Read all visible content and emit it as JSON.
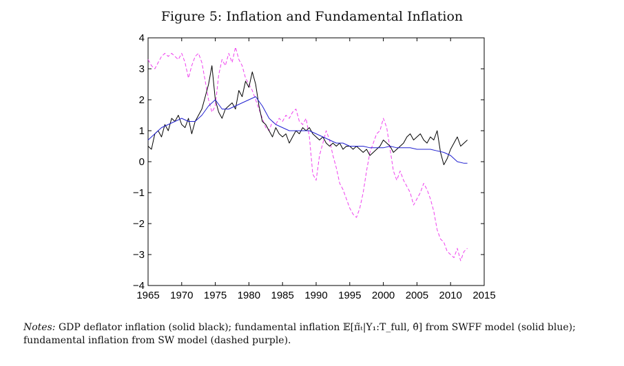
{
  "figure": {
    "title": "Figure 5: Inflation and Fundamental Inflation"
  },
  "notes": {
    "lead": "Notes:",
    "text_part1": "GDP deflator inflation (solid black); fundamental inflation",
    "math_expr": "𝔼[π̃ₜ|Y₁:T_full, θ̂]",
    "text_part2": "from SWFF model (solid blue); fundamental inflation from SW model (dashed purple)."
  },
  "chart_data": {
    "type": "line",
    "title": "",
    "xlabel": "",
    "ylabel": "",
    "xlim": [
      1965,
      2015
    ],
    "ylim": [
      -4,
      4
    ],
    "x_ticks": [
      1965,
      1970,
      1975,
      1980,
      1985,
      1990,
      1995,
      2000,
      2005,
      2010,
      2015
    ],
    "y_ticks": [
      -4,
      -3,
      -2,
      -1,
      0,
      1,
      2,
      3,
      4
    ],
    "series": [
      {
        "name": "GDP deflator inflation (solid black)",
        "color": "#000000",
        "style": "solid",
        "x": [
          1965,
          1965.5,
          1966,
          1966.5,
          1967,
          1967.5,
          1968,
          1968.5,
          1969,
          1969.5,
          1970,
          1970.5,
          1971,
          1971.5,
          1972,
          1972.5,
          1973,
          1973.5,
          1974,
          1974.5,
          1975,
          1975.5,
          1976,
          1976.5,
          1977,
          1977.5,
          1978,
          1978.5,
          1979,
          1979.5,
          1980,
          1980.5,
          1981,
          1981.5,
          1982,
          1982.5,
          1983,
          1983.5,
          1984,
          1984.5,
          1985,
          1985.5,
          1986,
          1986.5,
          1987,
          1987.5,
          1988,
          1988.5,
          1989,
          1989.5,
          1990,
          1990.5,
          1991,
          1991.5,
          1992,
          1992.5,
          1993,
          1993.5,
          1994,
          1994.5,
          1995,
          1995.5,
          1996,
          1996.5,
          1997,
          1997.5,
          1998,
          1998.5,
          1999,
          1999.5,
          2000,
          2000.5,
          2001,
          2001.5,
          2002,
          2002.5,
          2003,
          2003.5,
          2004,
          2004.5,
          2005,
          2005.5,
          2006,
          2006.5,
          2007,
          2007.5,
          2008,
          2008.5,
          2009,
          2009.5,
          2010,
          2010.5,
          2011,
          2011.5,
          2012,
          2012.5
        ],
        "values": [
          0.5,
          0.4,
          0.9,
          1.0,
          0.8,
          1.2,
          1.0,
          1.4,
          1.3,
          1.5,
          1.2,
          1.1,
          1.4,
          0.9,
          1.3,
          1.5,
          1.7,
          2.1,
          2.5,
          3.1,
          2.0,
          1.6,
          1.4,
          1.7,
          1.8,
          1.9,
          1.7,
          2.3,
          2.1,
          2.6,
          2.4,
          2.9,
          2.5,
          1.8,
          1.3,
          1.2,
          1.0,
          0.8,
          1.1,
          0.9,
          0.8,
          0.9,
          0.6,
          0.8,
          1.0,
          0.9,
          1.1,
          1.0,
          1.1,
          0.9,
          0.8,
          0.7,
          0.8,
          0.6,
          0.5,
          0.6,
          0.5,
          0.6,
          0.4,
          0.5,
          0.5,
          0.4,
          0.5,
          0.4,
          0.3,
          0.4,
          0.2,
          0.3,
          0.4,
          0.5,
          0.7,
          0.6,
          0.5,
          0.3,
          0.4,
          0.5,
          0.6,
          0.8,
          0.9,
          0.7,
          0.8,
          0.9,
          0.7,
          0.6,
          0.8,
          0.7,
          1.0,
          0.3,
          -0.1,
          0.1,
          0.4,
          0.6,
          0.8,
          0.5,
          0.6,
          0.7
        ]
      },
      {
        "name": "Fundamental inflation SWFF model (solid blue)",
        "color": "#1f1fd0",
        "style": "solid",
        "x": [
          1965,
          1966,
          1967,
          1968,
          1969,
          1970,
          1971,
          1972,
          1973,
          1974,
          1975,
          1976,
          1977,
          1978,
          1979,
          1980,
          1981,
          1982,
          1983,
          1984,
          1985,
          1986,
          1987,
          1988,
          1989,
          1990,
          1991,
          1992,
          1993,
          1994,
          1995,
          1996,
          1997,
          1998,
          1999,
          2000,
          2001,
          2002,
          2003,
          2004,
          2005,
          2006,
          2007,
          2008,
          2009,
          2010,
          2011,
          2012,
          2012.5
        ],
        "values": [
          0.7,
          0.9,
          1.1,
          1.2,
          1.3,
          1.4,
          1.3,
          1.3,
          1.5,
          1.8,
          2.0,
          1.7,
          1.7,
          1.8,
          1.9,
          2.0,
          2.1,
          1.8,
          1.4,
          1.2,
          1.1,
          1.0,
          1.0,
          1.0,
          1.0,
          0.9,
          0.8,
          0.7,
          0.6,
          0.6,
          0.5,
          0.5,
          0.5,
          0.45,
          0.45,
          0.45,
          0.5,
          0.45,
          0.45,
          0.45,
          0.4,
          0.4,
          0.4,
          0.35,
          0.3,
          0.2,
          0.0,
          -0.05,
          -0.05
        ]
      },
      {
        "name": "Fundamental inflation SW model (dashed purple)",
        "color": "#ee3fee",
        "style": "dashed",
        "x": [
          1965,
          1965.5,
          1966,
          1966.5,
          1967,
          1967.5,
          1968,
          1968.5,
          1969,
          1969.5,
          1970,
          1970.5,
          1971,
          1971.5,
          1972,
          1972.5,
          1973,
          1973.5,
          1974,
          1974.5,
          1975,
          1975.5,
          1976,
          1976.5,
          1977,
          1977.5,
          1978,
          1978.5,
          1979,
          1979.5,
          1980,
          1980.5,
          1981,
          1981.5,
          1982,
          1982.5,
          1983,
          1983.5,
          1984,
          1984.5,
          1985,
          1985.5,
          1986,
          1986.5,
          1987,
          1987.5,
          1988,
          1988.5,
          1989,
          1989.5,
          1990,
          1990.5,
          1991,
          1991.5,
          1992,
          1992.5,
          1993,
          1993.5,
          1994,
          1994.5,
          1995,
          1995.5,
          1996,
          1996.5,
          1997,
          1997.5,
          1998,
          1998.5,
          1999,
          1999.5,
          2000,
          2000.5,
          2001,
          2001.5,
          2002,
          2002.5,
          2003,
          2003.5,
          2004,
          2004.5,
          2005,
          2005.5,
          2006,
          2006.5,
          2007,
          2007.5,
          2008,
          2008.5,
          2009,
          2009.5,
          2010,
          2010.5,
          2011,
          2011.5,
          2012,
          2012.5
        ],
        "values": [
          3.3,
          3.1,
          3.0,
          3.2,
          3.4,
          3.5,
          3.4,
          3.5,
          3.4,
          3.3,
          3.5,
          3.2,
          2.7,
          3.1,
          3.4,
          3.5,
          3.2,
          2.6,
          2.0,
          1.6,
          1.8,
          2.8,
          3.3,
          3.1,
          3.5,
          3.2,
          3.7,
          3.3,
          3.1,
          2.7,
          2.5,
          2.3,
          2.0,
          1.7,
          1.4,
          1.1,
          1.0,
          1.3,
          1.2,
          1.4,
          1.3,
          1.5,
          1.4,
          1.6,
          1.7,
          1.3,
          1.2,
          1.4,
          0.8,
          -0.4,
          -0.6,
          0.2,
          0.6,
          1.0,
          0.7,
          0.2,
          -0.2,
          -0.7,
          -0.9,
          -1.2,
          -1.5,
          -1.7,
          -1.8,
          -1.5,
          -1.0,
          -0.3,
          0.3,
          0.6,
          0.9,
          1.0,
          1.4,
          1.1,
          0.4,
          -0.3,
          -0.6,
          -0.3,
          -0.6,
          -0.8,
          -1.0,
          -1.4,
          -1.2,
          -1.0,
          -0.7,
          -0.9,
          -1.2,
          -1.6,
          -2.2,
          -2.5,
          -2.6,
          -2.9,
          -3.0,
          -3.1,
          -2.8,
          -3.2,
          -2.9,
          -2.8
        ]
      }
    ]
  }
}
